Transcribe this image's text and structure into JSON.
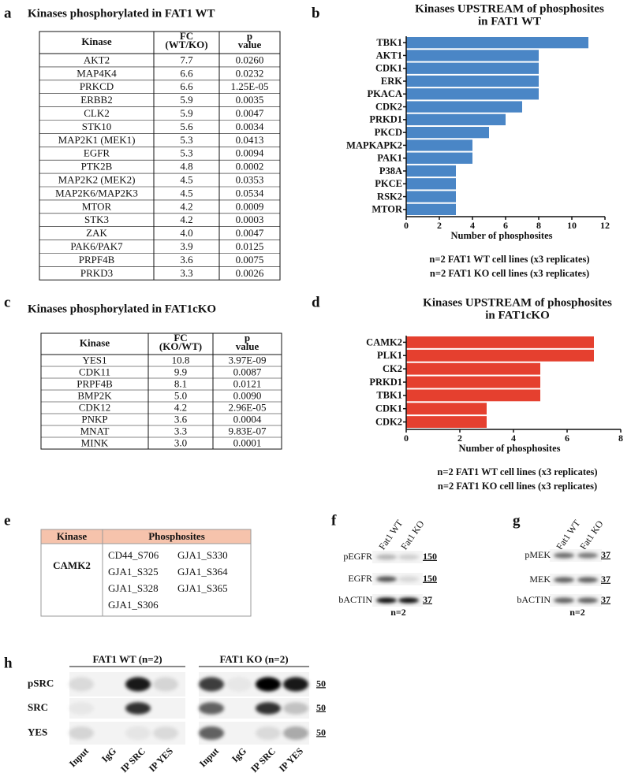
{
  "panel_a": {
    "label": "a",
    "title": "Kinases phosphorylated in FAT1 WT",
    "table": {
      "header": [
        "Kinase",
        [
          "FC",
          "(WT/KO)"
        ],
        [
          "p",
          "value"
        ]
      ],
      "rows": [
        [
          "AKT2",
          "7.7",
          "0.0260"
        ],
        [
          "MAP4K4",
          "6.6",
          "0.0232"
        ],
        [
          "PRKCD",
          "6.6",
          "1.25E-05"
        ],
        [
          "ERBB2",
          "5.9",
          "0.0035"
        ],
        [
          "CLK2",
          "5.9",
          "0.0047"
        ],
        [
          "STK10",
          "5.6",
          "0.0034"
        ],
        [
          "MAP2K1 (MEK1)",
          "5.3",
          "0.0413"
        ],
        [
          "EGFR",
          "5.3",
          "0.0094"
        ],
        [
          "PTK2B",
          "4.8",
          "0.0002"
        ],
        [
          "MAP2K2 (MEK2)",
          "4.5",
          "0.0353"
        ],
        [
          "MAP2K6/MAP2K3",
          "4.5",
          "0.0534"
        ],
        [
          "MTOR",
          "4.2",
          "0.0009"
        ],
        [
          "STK3",
          "4.2",
          "0.0003"
        ],
        [
          "ZAK",
          "4.0",
          "0.0047"
        ],
        [
          "PAK6/PAK7",
          "3.9",
          "0.0125"
        ],
        [
          "PRPF4B",
          "3.6",
          "0.0075"
        ],
        [
          "PRKD3",
          "3.3",
          "0.0026"
        ]
      ]
    }
  },
  "panel_c": {
    "label": "c",
    "title": "Kinases phosphorylated in FAT1cKO",
    "table": {
      "header": [
        "Kinase",
        [
          "FC",
          "(KO/WT)"
        ],
        [
          "p",
          "value"
        ]
      ],
      "rows": [
        [
          "YES1",
          "10.8",
          "3.97E-09"
        ],
        [
          "CDK11",
          "9.9",
          "0.0087"
        ],
        [
          "PRPF4B",
          "8.1",
          "0.0121"
        ],
        [
          "BMP2K",
          "5.0",
          "0.0090"
        ],
        [
          "CDK12",
          "4.2",
          "2.96E-05"
        ],
        [
          "PNKP",
          "3.6",
          "0.0004"
        ],
        [
          "MNAT",
          "3.3",
          "9.83E-07"
        ],
        [
          "MINK",
          "3.0",
          "0.0001"
        ]
      ]
    }
  },
  "chart_data": [
    {
      "type": "bar",
      "orientation": "horizontal",
      "label": "b",
      "title": [
        "Kinases UPSTREAM of phosphosites",
        "in FAT1 WT"
      ],
      "categories": [
        "TBK1",
        "AKT1",
        "CDK1",
        "ERK",
        "PKACA",
        "CDK2",
        "PRKD1",
        "PKCD",
        "MAPKAPK2",
        "PAK1",
        "P38A",
        "PKCE",
        "RSK2",
        "MTOR"
      ],
      "values": [
        11,
        8,
        8,
        8,
        8,
        7,
        6,
        5,
        4,
        4,
        3,
        3,
        3,
        3
      ],
      "color": "#4a86c6",
      "xlabel": "Number of phosphosites",
      "xlim": [
        0,
        12
      ],
      "xticks": [
        0,
        2,
        4,
        6,
        8,
        10,
        12
      ],
      "notes": [
        "n=2 FAT1 WT cell lines (x3 replicates)",
        "n=2 FAT1 KO cell lines (x3 replicates)"
      ]
    },
    {
      "type": "bar",
      "orientation": "horizontal",
      "label": "d",
      "title": [
        "Kinases UPSTREAM of phosphosites",
        "in FAT1cKO"
      ],
      "categories": [
        "CAMK2",
        "PLK1",
        "CK2",
        "PRKD1",
        "TBK1",
        "CDK1",
        "CDK2"
      ],
      "values": [
        7,
        7,
        5,
        5,
        5,
        3,
        3
      ],
      "color": "#e5402f",
      "xlabel": "Number of phosphosites",
      "xlim": [
        0,
        8
      ],
      "xticks": [
        0,
        2,
        4,
        6,
        8
      ],
      "notes": [
        "n=2 FAT1 WT cell lines (x3 replicates)",
        "n=2 FAT1 KO cell lines (x3 replicates)"
      ]
    }
  ],
  "panel_e": {
    "label": "e",
    "header": [
      "Kinase",
      "Phosphosites"
    ],
    "kinase": "CAMK2",
    "phosphosites": [
      "CD44_S706",
      "GJA1_S330",
      "GJA1_S325",
      "GJA1_S364",
      "GJA1_S328",
      "GJA1_S365",
      "GJA1_S306"
    ]
  },
  "panel_f": {
    "label": "f",
    "lanes": [
      "Fat1 WT",
      "Fat1 KO"
    ],
    "rows": [
      "pEGFR",
      "EGFR",
      "bACTIN"
    ],
    "mw": [
      "150",
      "150",
      "37"
    ],
    "note": "n=2"
  },
  "panel_g": {
    "label": "g",
    "lanes": [
      "Fat1 WT",
      "Fat1 KO"
    ],
    "rows": [
      "pMEK",
      "MEK",
      "bACTIN"
    ],
    "mw": [
      "37",
      "37",
      "37"
    ],
    "note": "n=2"
  },
  "panel_h": {
    "label": "h",
    "groups": [
      "FAT1 WT (n=2)",
      "FAT1 KO (n=2)"
    ],
    "rows": [
      "pSRC",
      "SRC",
      "YES"
    ],
    "mw": [
      "50",
      "50",
      "50"
    ],
    "lanes": [
      "Input",
      "IgG",
      "IP SRC",
      "IP YES"
    ]
  }
}
